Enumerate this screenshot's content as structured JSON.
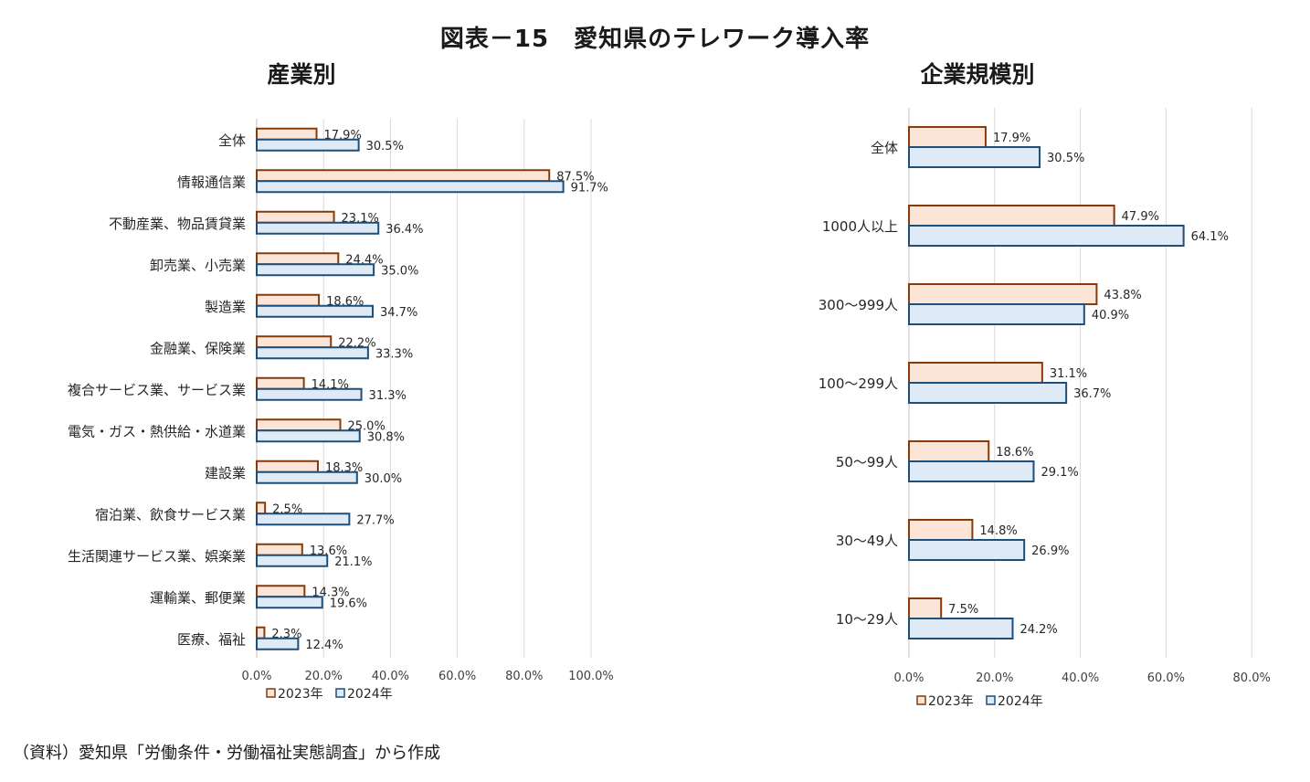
{
  "title": "図表－15　愛知県のテレワーク導入率",
  "source": "（資料）愛知県「労働条件・労働福祉実態調査」から作成",
  "colors": {
    "2023_fill": "#fce4d6",
    "2023_stroke": "#843c0c",
    "2024_fill": "#deebf7",
    "2024_stroke": "#1f4e79",
    "grid": "#d9d9d9",
    "axis": "#bfbfbf"
  },
  "chart_data": [
    {
      "type": "bar",
      "orientation": "horizontal",
      "title": "産業別",
      "categories": [
        "全体",
        "情報通信業",
        "不動産業、物品賃貸業",
        "卸売業、小売業",
        "製造業",
        "金融業、保険業",
        "複合サービス業、サービス業",
        "電気・ガス・熱供給・水道業",
        "建設業",
        "宿泊業、飲食サービス業",
        "生活関連サービス業、娯楽業",
        "運輸業、郵便業",
        "医療、福祉"
      ],
      "series": [
        {
          "name": "2023年",
          "values": [
            17.9,
            87.5,
            23.1,
            24.4,
            18.6,
            22.2,
            14.1,
            25.0,
            18.3,
            2.5,
            13.6,
            14.3,
            2.3
          ]
        },
        {
          "name": "2024年",
          "values": [
            30.5,
            91.7,
            36.4,
            35.0,
            34.7,
            33.3,
            31.3,
            30.8,
            30.0,
            27.7,
            21.1,
            19.6,
            12.4
          ]
        }
      ],
      "xlim": [
        0,
        100
      ],
      "ticks": [
        "0.0%",
        "20.0%",
        "40.0%",
        "60.0%",
        "80.0%",
        "100.0%"
      ],
      "grid": true,
      "legend": "bottom"
    },
    {
      "type": "bar",
      "orientation": "horizontal",
      "title": "企業規模別",
      "categories": [
        "全体",
        "1000人以上",
        "300～999人",
        "100～299人",
        "50～99人",
        "30～49人",
        "10～29人"
      ],
      "series": [
        {
          "name": "2023年",
          "values": [
            17.9,
            47.9,
            43.8,
            31.1,
            18.6,
            14.8,
            7.5
          ]
        },
        {
          "name": "2024年",
          "values": [
            30.5,
            64.1,
            40.9,
            36.7,
            29.1,
            26.9,
            24.2
          ]
        }
      ],
      "xlim": [
        0,
        80
      ],
      "ticks": [
        "0.0%",
        "20.0%",
        "40.0%",
        "60.0%",
        "80.0%"
      ],
      "grid": true,
      "legend": "bottom"
    }
  ]
}
